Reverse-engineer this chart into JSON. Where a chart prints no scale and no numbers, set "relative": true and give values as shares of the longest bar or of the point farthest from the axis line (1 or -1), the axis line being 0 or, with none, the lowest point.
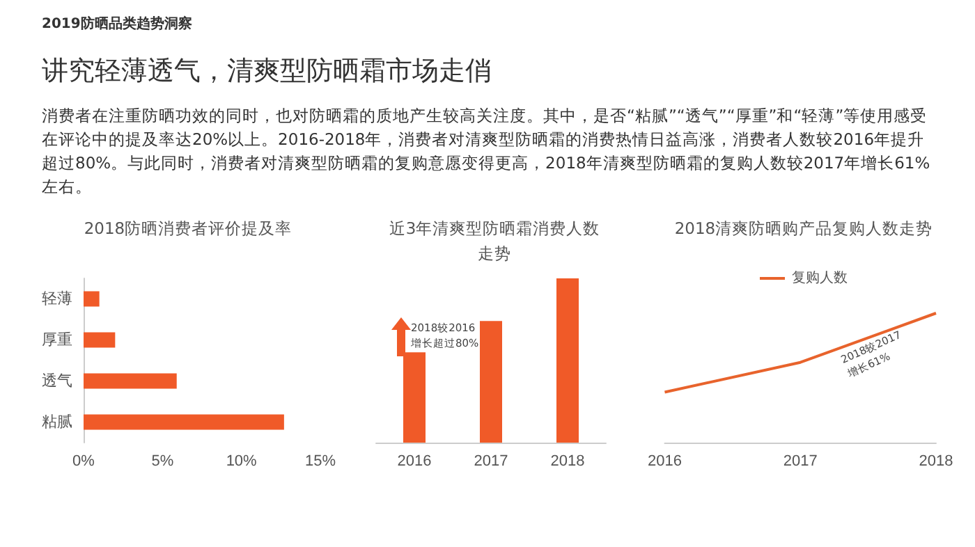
{
  "chart_data": [
    {
      "type": "other",
      "subtitle": "2019防晒品类趋势洞察",
      "title": "讲究轻薄透气，清爽型防晒霜市场走俏",
      "annotations": [
        "消费者在注重防晒功效的同时，也对防晒霜的质地产生较高关注度。其中，是否“粘腻”“透气”“厚重”和“轻薄”等使用感受在评论中的提及率达20%以上。2016-2018年，消费者对清爽型防晒霜的消费热情日益高涨，消费者人数较2016年提升超过80%。与此同时，消费者对清爽型防晒霜的复购意愿变得更高，2018年清爽型防晒霜的复购人数较2017年增长61%左右。"
      ]
    },
    {
      "type": "bar",
      "orientation": "horizontal",
      "title": "2018防晒消费者评价提及率",
      "categories": [
        "轻薄",
        "厚重",
        "透气",
        "粘腻"
      ],
      "values": [
        1.0,
        2.0,
        5.9,
        12.7
      ],
      "color": "#f05a28",
      "xlim": [
        0,
        15
      ],
      "xticks": [
        {
          "value": 0,
          "label": "0%"
        },
        {
          "value": 5,
          "label": "5%"
        },
        {
          "value": 10,
          "label": "10%"
        },
        {
          "value": 15,
          "label": "15%"
        }
      ]
    },
    {
      "type": "bar",
      "relative": true,
      "title": "近3年清爽型防晒霜消费人数走势",
      "categories": [
        "2016",
        "2017",
        "2018"
      ],
      "values": [
        0.55,
        0.74,
        1
      ],
      "color": "#f05a28",
      "annotations": [
        "2018较2016\n增长超过80%"
      ]
    },
    {
      "type": "line",
      "relative": true,
      "title": "2018清爽防晒购产品复购人数走势",
      "categories": [
        "2016",
        "2017",
        "2018"
      ],
      "series": [
        {
          "name": "复购人数",
          "color": "#e8632c",
          "values": [
            0.39,
            0.62,
            1
          ]
        }
      ],
      "legend": "top",
      "marker": "none",
      "line_style": "solid",
      "annotations": [
        "2018较2017\n增长61%"
      ]
    }
  ]
}
